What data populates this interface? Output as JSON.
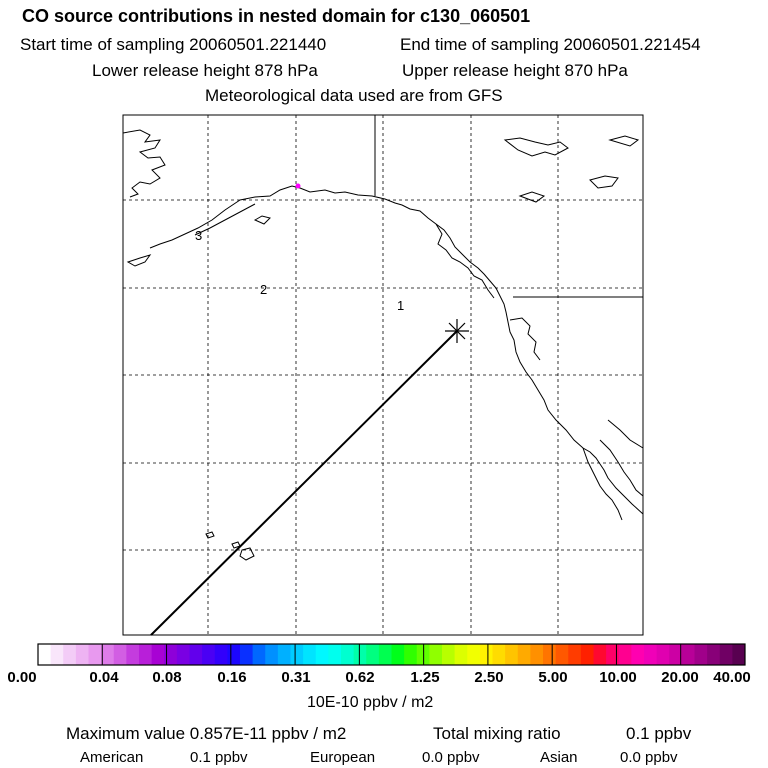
{
  "header": {
    "title": "CO  source contributions in nested domain for c130_060501",
    "start_time": "Start time of sampling 20060501.221440",
    "end_time": "End time of sampling 20060501.221454",
    "lower_height": "Lower release height  878 hPa",
    "upper_height": "Upper release height  870 hPa",
    "met_data": "Meteorological data used are from GFS"
  },
  "map": {
    "contour_labels": [
      "2",
      "1",
      "3"
    ],
    "marker_colors": {
      "source_dot": "#ff00ff",
      "release_point": "#000000"
    }
  },
  "colorbar": {
    "tick_labels": [
      "0.00",
      "0.04",
      "0.08",
      "0.16",
      "0.31",
      "0.62",
      "1.25",
      "2.50",
      "5.00",
      "10.00",
      "20.00",
      "40.00"
    ],
    "unit": "10E-10 ppbv / m2",
    "colors": [
      "#ffffff",
      "#f9e6fb",
      "#f3ccf7",
      "#eeb3f3",
      "#e899ef",
      "#de7ce9",
      "#d25ee3",
      "#c43cde",
      "#b81fd9",
      "#a802d4",
      "#8e00d9",
      "#7a00e3",
      "#6200ec",
      "#4a00f4",
      "#3200fb",
      "#1c06ff",
      "#0a30ff",
      "#0068ff",
      "#0090ff",
      "#00b0ff",
      "#00ccff",
      "#00e4ff",
      "#00f8ff",
      "#00ffee",
      "#00ffd0",
      "#00ffaa",
      "#00ff80",
      "#00ff50",
      "#00ff1a",
      "#30ff00",
      "#60ff00",
      "#90ff00",
      "#b8ff00",
      "#dcff00",
      "#f2ff00",
      "#fff200",
      "#ffdc00",
      "#ffc400",
      "#ffaa00",
      "#ff9000",
      "#ff7400",
      "#ff5800",
      "#ff3c00",
      "#ff2000",
      "#ff0830",
      "#ff0068",
      "#ff0090",
      "#ff00b0",
      "#f000b8",
      "#e000b0",
      "#cc00a4",
      "#b80098",
      "#a0008a",
      "#880078",
      "#700064",
      "#580050"
    ]
  },
  "summary": {
    "max_value": "Maximum value  0.857E-11 ppbv / m2",
    "total_label": "Total mixing ratio",
    "total_value": "0.1 ppbv",
    "regions": [
      {
        "name": "American",
        "value": "0.1 ppbv"
      },
      {
        "name": "European",
        "value": "0.0 ppbv"
      },
      {
        "name": "Asian",
        "value": "0.0 ppbv"
      }
    ]
  }
}
